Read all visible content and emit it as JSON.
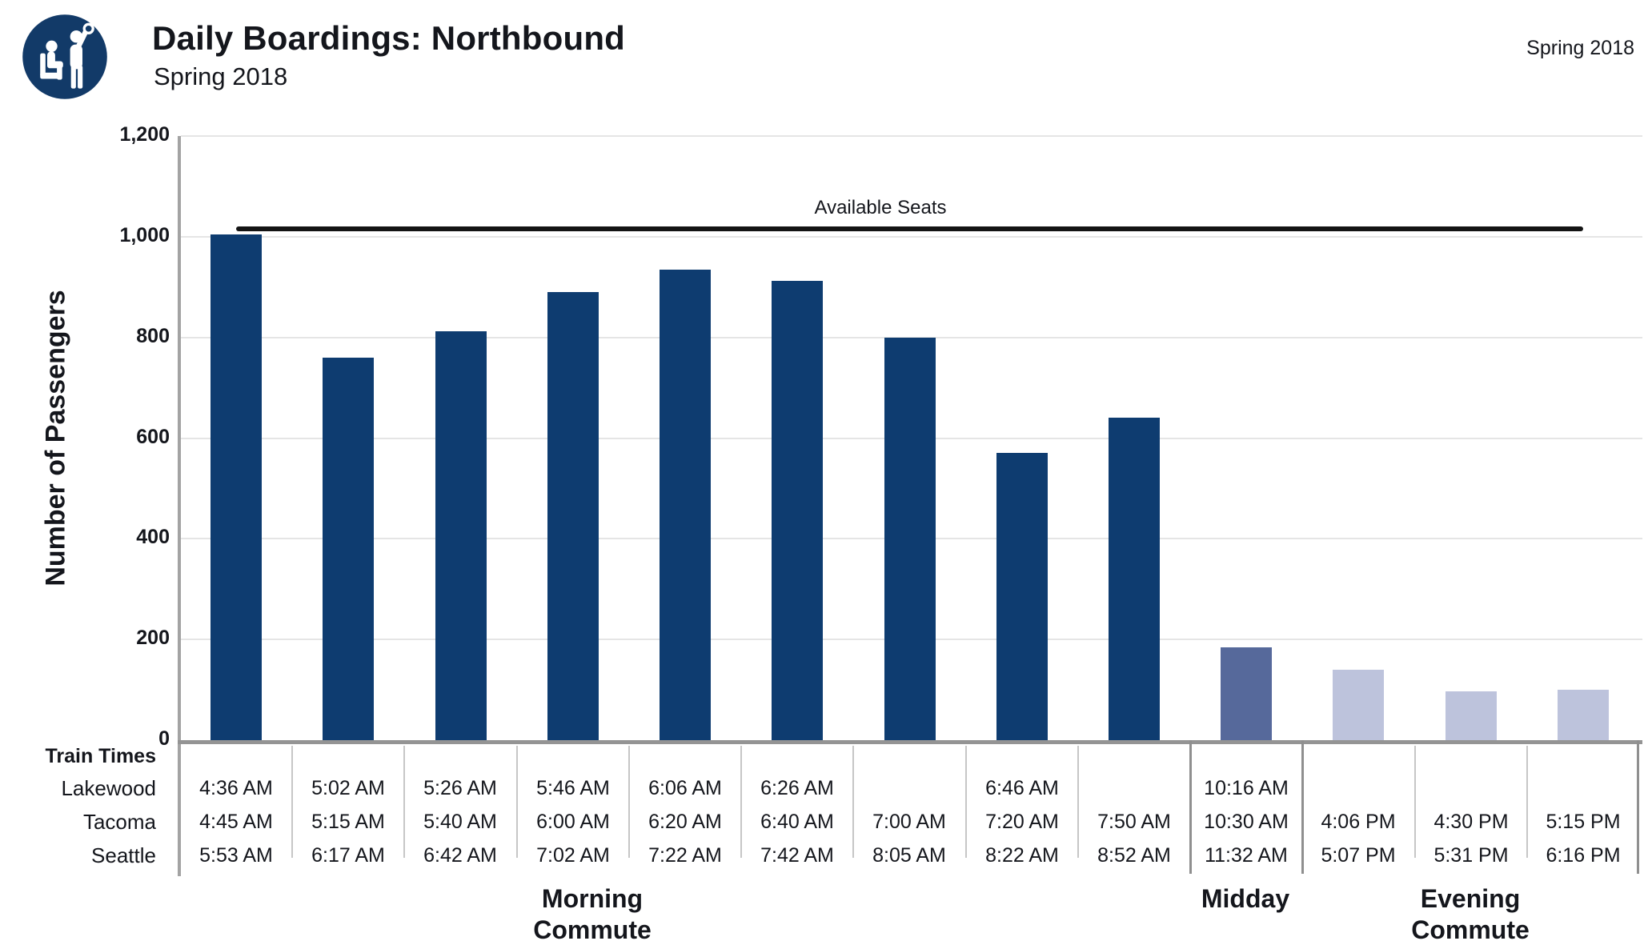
{
  "header": {
    "logo_icon": "seated-and-standing-transit-riders-icon",
    "title": "Daily Boardings: Northbound",
    "subtitle": "Spring 2018",
    "corner_note": "Spring 2018"
  },
  "chart_data": {
    "type": "bar",
    "title": "Daily Boardings: Northbound",
    "subtitle": "Spring 2018",
    "ylabel": "Number of Passengers",
    "xlabel": "",
    "ylim": [
      0,
      1200
    ],
    "ytick_interval": 200,
    "yticks": [
      "0",
      "200",
      "400",
      "600",
      "800",
      "1,000",
      "1,200"
    ],
    "grid": true,
    "legend": "none",
    "reference_line": {
      "label": "Available Seats",
      "value": 1015,
      "color": "#141414"
    },
    "groups": [
      {
        "id": "morning",
        "label": "Morning Commute",
        "label_lines": [
          "Morning",
          "Commute"
        ],
        "color": "#0E3C70",
        "bar_count": 9
      },
      {
        "id": "midday",
        "label": "Midday",
        "label_lines": [
          "Midday"
        ],
        "color": "#56699B",
        "bar_count": 1
      },
      {
        "id": "evening",
        "label": "Evening Commute",
        "label_lines": [
          "Evening",
          "Commute"
        ],
        "color": "#BDC3DC",
        "bar_count": 3
      }
    ],
    "bars": [
      {
        "group": "morning",
        "passengers": 1005,
        "lakewood": "4:36 AM",
        "tacoma": "4:45 AM",
        "seattle": "5:53 AM"
      },
      {
        "group": "morning",
        "passengers": 760,
        "lakewood": "5:02 AM",
        "tacoma": "5:15 AM",
        "seattle": "6:17 AM"
      },
      {
        "group": "morning",
        "passengers": 812,
        "lakewood": "5:26 AM",
        "tacoma": "5:40 AM",
        "seattle": "6:42 AM"
      },
      {
        "group": "morning",
        "passengers": 890,
        "lakewood": "5:46 AM",
        "tacoma": "6:00 AM",
        "seattle": "7:02 AM"
      },
      {
        "group": "morning",
        "passengers": 935,
        "lakewood": "6:06 AM",
        "tacoma": "6:20 AM",
        "seattle": "7:22 AM"
      },
      {
        "group": "morning",
        "passengers": 912,
        "lakewood": "6:26 AM",
        "tacoma": "6:40 AM",
        "seattle": "7:42 AM"
      },
      {
        "group": "morning",
        "passengers": 800,
        "lakewood": "",
        "tacoma": "7:00 AM",
        "seattle": "8:05 AM"
      },
      {
        "group": "morning",
        "passengers": 570,
        "lakewood": "6:46 AM",
        "tacoma": "7:20 AM",
        "seattle": "8:22 AM"
      },
      {
        "group": "morning",
        "passengers": 640,
        "lakewood": "",
        "tacoma": "7:50 AM",
        "seattle": "8:52 AM"
      },
      {
        "group": "midday",
        "passengers": 185,
        "lakewood": "10:16 AM",
        "tacoma": "10:30 AM",
        "seattle": "11:32 AM"
      },
      {
        "group": "evening",
        "passengers": 140,
        "lakewood": "",
        "tacoma": "4:06 PM",
        "seattle": "5:07 PM"
      },
      {
        "group": "evening",
        "passengers": 97,
        "lakewood": "",
        "tacoma": "4:30 PM",
        "seattle": "5:31 PM"
      },
      {
        "group": "evening",
        "passengers": 100,
        "lakewood": "",
        "tacoma": "5:15 PM",
        "seattle": "6:16 PM"
      }
    ]
  },
  "table": {
    "header_label": "Train Times",
    "row_labels": [
      "Lakewood",
      "Tacoma",
      "Seattle"
    ]
  }
}
